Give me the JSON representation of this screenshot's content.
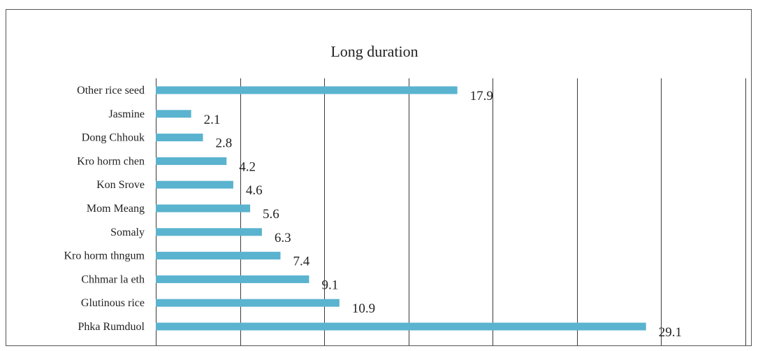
{
  "chart_data": {
    "type": "bar",
    "orientation": "horizontal",
    "title": "Long duration",
    "categories": [
      "Other rice seed",
      "Jasmine",
      "Dong Chhouk",
      "Kro horm chen",
      "Kon Srove",
      "Mom Meang",
      "Somaly",
      "Kro horm thngum",
      "Chhmar la eth",
      "Glutinous rice",
      "Phka Rumduol"
    ],
    "values": [
      17.9,
      2.1,
      2.8,
      4.2,
      4.6,
      5.6,
      6.3,
      7.4,
      9.1,
      10.9,
      29.1
    ],
    "xlim": [
      0,
      35
    ],
    "grid": true,
    "legend": "none",
    "bar_color": "#5ab3cf",
    "grid_color": "#3a3a3a"
  }
}
